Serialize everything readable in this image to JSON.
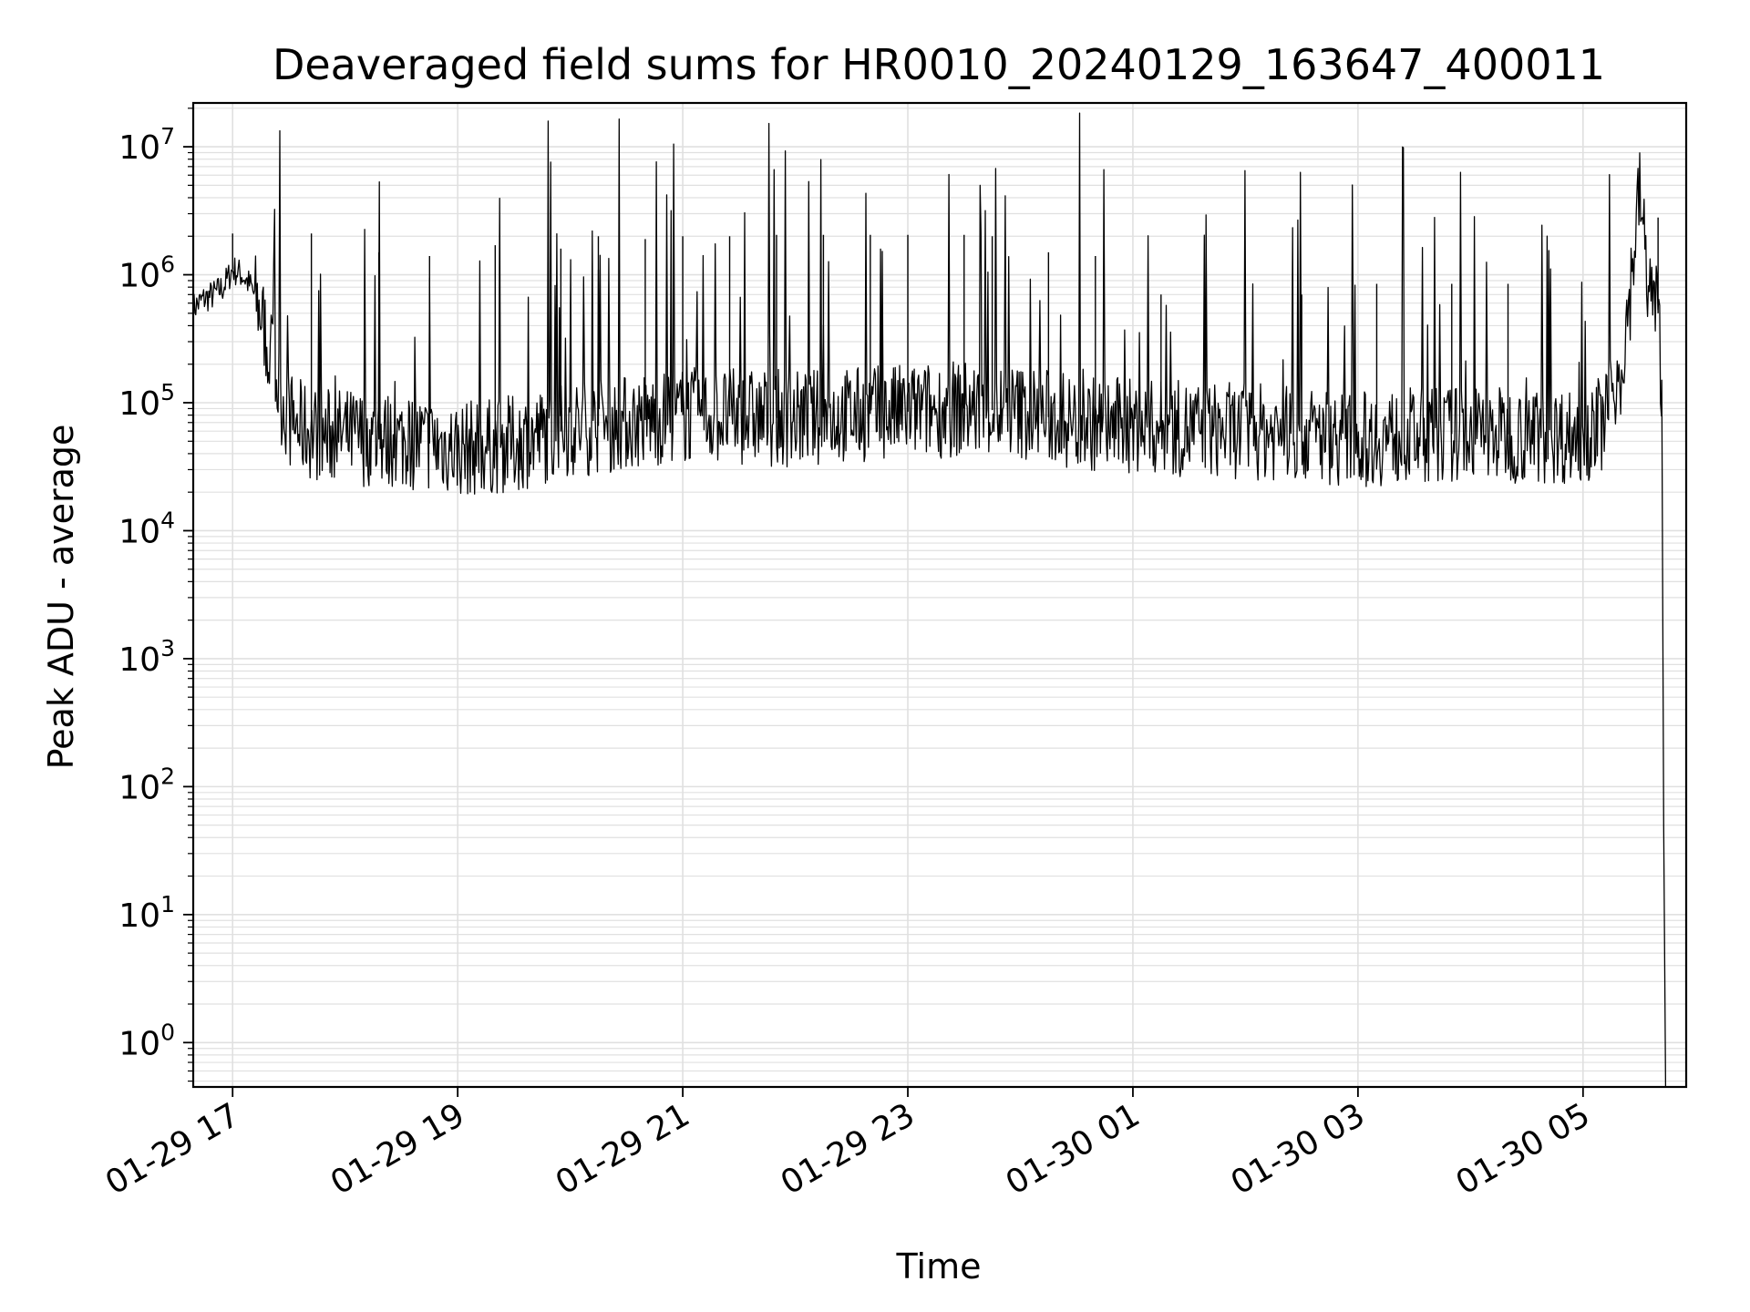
{
  "chart_data": {
    "type": "line",
    "title": "Deaveraged field sums for HR0010_20240129_163647_400011",
    "xlabel": "Time",
    "ylabel": "Peak ADU - average",
    "yscale": "log",
    "grid": true,
    "line_color": "#000000",
    "grid_color": "#e0e0e0",
    "xlim": [
      "01-29 16:39",
      "01-30 05:55"
    ],
    "ylim": [
      0.45,
      22000000
    ],
    "x_ticks": [
      "01-29 17",
      "01-29 19",
      "01-29 21",
      "01-29 23",
      "01-30 01",
      "01-30 03",
      "01-30 05"
    ],
    "y_ticks": [
      {
        "value": 1,
        "base": "10",
        "exp": "0"
      },
      {
        "value": 10,
        "base": "10",
        "exp": "1"
      },
      {
        "value": 100,
        "base": "10",
        "exp": "2"
      },
      {
        "value": 1000,
        "base": "10",
        "exp": "3"
      },
      {
        "value": 10000,
        "base": "10",
        "exp": "4"
      },
      {
        "value": 100000,
        "base": "10",
        "exp": "5"
      },
      {
        "value": 1000000,
        "base": "10",
        "exp": "6"
      },
      {
        "value": 10000000,
        "base": "10",
        "exp": "7"
      }
    ],
    "series": [
      {
        "x": [
          "01-29 16:39",
          "01-29 16:45",
          "01-29 16:50",
          "01-29 16:55",
          "01-29 17:00",
          "01-29 17:05",
          "01-29 17:10",
          "01-29 17:15",
          "01-29 17:20",
          "01-29 17:25",
          "01-29 17:30",
          "01-29 17:35",
          "01-29 17:40",
          "01-29 17:50",
          "01-29 18:00",
          "01-29 18:15",
          "01-29 18:30",
          "01-29 18:45",
          "01-29 19:00",
          "01-29 19:15",
          "01-29 19:30",
          "01-29 19:45",
          "01-29 20:00",
          "01-29 20:30",
          "01-29 21:00",
          "01-29 21:30",
          "01-29 22:00",
          "01-29 22:30",
          "01-29 23:00",
          "01-29 23:30",
          "01-30 00:00",
          "01-30 00:30",
          "01-30 01:00",
          "01-30 01:30",
          "01-30 02:00",
          "01-30 02:30",
          "01-30 03:00",
          "01-30 03:30",
          "01-30 04:00",
          "01-30 04:30",
          "01-30 05:00",
          "01-30 05:10",
          "01-30 05:20",
          "01-30 05:25",
          "01-30 05:30",
          "01-30 05:35",
          "01-30 05:40",
          "01-30 05:42",
          "01-30 05:43",
          "01-30 05:44"
        ],
        "y": [
          550000,
          650000,
          700000,
          800000,
          1100000,
          1000000,
          800000,
          500000,
          250000,
          120000,
          75000,
          65000,
          60000,
          55000,
          55000,
          52000,
          50000,
          48000,
          44000,
          45000,
          48000,
          55000,
          62000,
          70000,
          80000,
          78000,
          75000,
          80000,
          85000,
          90000,
          85000,
          70000,
          65000,
          62000,
          60000,
          58000,
          52000,
          55000,
          58000,
          56000,
          55000,
          70000,
          180000,
          700000,
          4500000,
          800000,
          500000,
          150000,
          50,
          0.45
        ]
      }
    ],
    "spikes": [
      {
        "x": "01-29 17:00",
        "y": 2100000
      },
      {
        "x": "01-29 17:42",
        "y": 2100000
      },
      {
        "x": "01-29 18:18",
        "y": 1500000
      },
      {
        "x": "01-29 18:45",
        "y": 1400000
      },
      {
        "x": "01-29 19:20",
        "y": 1700000
      },
      {
        "x": "01-29 19:55",
        "y": 1600000
      },
      {
        "x": "01-29 20:15",
        "y": 2000000
      },
      {
        "x": "01-29 20:40",
        "y": 1900000
      },
      {
        "x": "01-29 21:00",
        "y": 2000000
      },
      {
        "x": "01-29 21:25",
        "y": 2000000
      },
      {
        "x": "01-29 21:50",
        "y": 2050000
      },
      {
        "x": "01-29 22:15",
        "y": 2050000
      },
      {
        "x": "01-29 22:40",
        "y": 2050000
      },
      {
        "x": "01-29 23:00",
        "y": 2050000
      },
      {
        "x": "01-29 23:30",
        "y": 2050000
      },
      {
        "x": "01-29 23:45",
        "y": 2000000
      },
      {
        "x": "01-30 00:15",
        "y": 1500000
      },
      {
        "x": "01-30 00:40",
        "y": 1400000
      },
      {
        "x": "01-30 01:15",
        "y": 700000
      },
      {
        "x": "01-30 02:30",
        "y": 700000
      },
      {
        "x": "01-30 03:10",
        "y": 850000
      },
      {
        "x": "01-30 03:50",
        "y": 850000
      },
      {
        "x": "01-30 04:20",
        "y": 850000
      },
      {
        "x": "01-30 05:40",
        "y": 2800000
      }
    ]
  }
}
